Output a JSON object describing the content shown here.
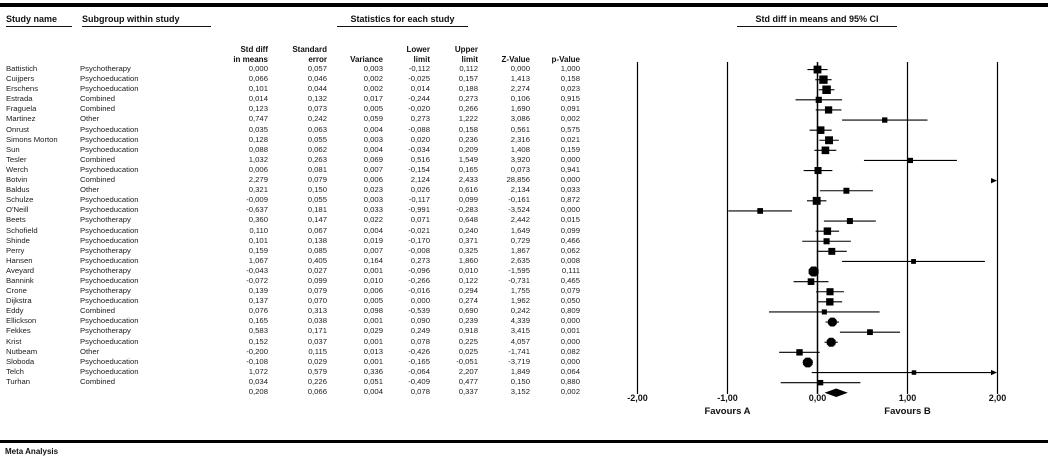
{
  "header": {
    "study_name": "Study name",
    "subgroup": "Subgroup within study",
    "stats_group": "Statistics for each study"
  },
  "table": {
    "stat_columns": [
      {
        "line1": "Std diff",
        "line2": "in means"
      },
      {
        "line1": "Standard",
        "line2": "error"
      },
      {
        "line1": "",
        "line2": "Variance"
      },
      {
        "line1": "Lower",
        "line2": "limit"
      },
      {
        "line1": "Upper",
        "line2": "limit"
      },
      {
        "line1": "",
        "line2": "Z-Value"
      },
      {
        "line1": "",
        "line2": "p-Value"
      }
    ]
  },
  "chart_data": {
    "type": "scatter",
    "variant": "forest-plot",
    "title": "Std diff in means and 95% CI",
    "xlim": [
      -2,
      2
    ],
    "x_tick_values": [
      -2,
      -1,
      0,
      1,
      2
    ],
    "x_ticks": [
      "-2,00",
      "-1,00",
      "0,00",
      "1,00",
      "2,00"
    ],
    "xlabel_left": "Favours A",
    "xlabel_right": "Favours B",
    "grid": true,
    "studies": [
      {
        "name": "Battistich",
        "subgroup": "Psychotherapy",
        "mean": 0.0,
        "se": 0.057,
        "variance": 0.003,
        "lower": -0.112,
        "upper": 0.112,
        "z": 0.0,
        "p": 1.0
      },
      {
        "name": "Cuijpers",
        "subgroup": "Psychoeducation",
        "mean": 0.066,
        "se": 0.046,
        "variance": 0.002,
        "lower": -0.025,
        "upper": 0.157,
        "z": 1.413,
        "p": 0.158
      },
      {
        "name": "Erschens",
        "subgroup": "Psychoeducation",
        "mean": 0.101,
        "se": 0.044,
        "variance": 0.002,
        "lower": 0.014,
        "upper": 0.188,
        "z": 2.274,
        "p": 0.023
      },
      {
        "name": "Estrada",
        "subgroup": "Combined",
        "mean": 0.014,
        "se": 0.132,
        "variance": 0.017,
        "lower": -0.244,
        "upper": 0.273,
        "z": 0.106,
        "p": 0.915
      },
      {
        "name": "Fraguela",
        "subgroup": "Combined",
        "mean": 0.123,
        "se": 0.073,
        "variance": 0.005,
        "lower": -0.02,
        "upper": 0.266,
        "z": 1.69,
        "p": 0.091
      },
      {
        "name": "Martinez",
        "subgroup": "Other",
        "mean": 0.747,
        "se": 0.242,
        "variance": 0.059,
        "lower": 0.273,
        "upper": 1.222,
        "z": 3.086,
        "p": 0.002
      },
      {
        "name": "Onrust",
        "subgroup": "Psychoeducation",
        "mean": 0.035,
        "se": 0.063,
        "variance": 0.004,
        "lower": -0.088,
        "upper": 0.158,
        "z": 0.561,
        "p": 0.575
      },
      {
        "name": "Simons Morton",
        "subgroup": "Psychoeducation",
        "mean": 0.128,
        "se": 0.055,
        "variance": 0.003,
        "lower": 0.02,
        "upper": 0.236,
        "z": 2.316,
        "p": 0.021
      },
      {
        "name": "Sun",
        "subgroup": "Psychoeducation",
        "mean": 0.088,
        "se": 0.062,
        "variance": 0.004,
        "lower": -0.034,
        "upper": 0.209,
        "z": 1.408,
        "p": 0.159
      },
      {
        "name": "Tesler",
        "subgroup": "Combined",
        "mean": 1.032,
        "se": 0.263,
        "variance": 0.069,
        "lower": 0.516,
        "upper": 1.549,
        "z": 3.92,
        "p": 0.0
      },
      {
        "name": "Werch",
        "subgroup": "Psychoeducation",
        "mean": 0.006,
        "se": 0.081,
        "variance": 0.007,
        "lower": -0.154,
        "upper": 0.165,
        "z": 0.073,
        "p": 0.941
      },
      {
        "name": "Botvin",
        "subgroup": "Combined",
        "mean": 2.279,
        "se": 0.079,
        "variance": 0.006,
        "lower": 2.124,
        "upper": 2.433,
        "z": 28.856,
        "p": 0.0
      },
      {
        "name": "Baldus",
        "subgroup": "Other",
        "mean": 0.321,
        "se": 0.15,
        "variance": 0.023,
        "lower": 0.026,
        "upper": 0.616,
        "z": 2.134,
        "p": 0.033
      },
      {
        "name": "Schulze",
        "subgroup": "Psychoeducation",
        "mean": -0.009,
        "se": 0.055,
        "variance": 0.003,
        "lower": -0.117,
        "upper": 0.099,
        "z": -0.161,
        "p": 0.872
      },
      {
        "name": "O'Neill",
        "subgroup": "Psychoeducation",
        "mean": -0.637,
        "se": 0.181,
        "variance": 0.033,
        "lower": -0.991,
        "upper": -0.283,
        "z": -3.524,
        "p": 0.0
      },
      {
        "name": "Beets",
        "subgroup": "Psychotherapy",
        "mean": 0.36,
        "se": 0.147,
        "variance": 0.022,
        "lower": 0.071,
        "upper": 0.648,
        "z": 2.442,
        "p": 0.015
      },
      {
        "name": "Schofield",
        "subgroup": "Psychoeducation",
        "mean": 0.11,
        "se": 0.067,
        "variance": 0.004,
        "lower": -0.021,
        "upper": 0.24,
        "z": 1.649,
        "p": 0.099
      },
      {
        "name": "Shinde",
        "subgroup": "Psychoeducation",
        "mean": 0.101,
        "se": 0.138,
        "variance": 0.019,
        "lower": -0.17,
        "upper": 0.371,
        "z": 0.729,
        "p": 0.466
      },
      {
        "name": "Perry",
        "subgroup": "Psychotherapy",
        "mean": 0.159,
        "se": 0.085,
        "variance": 0.007,
        "lower": -0.008,
        "upper": 0.325,
        "z": 1.867,
        "p": 0.062
      },
      {
        "name": "Hansen",
        "subgroup": "Psychoeducation",
        "mean": 1.067,
        "se": 0.405,
        "variance": 0.164,
        "lower": 0.273,
        "upper": 1.86,
        "z": 2.635,
        "p": 0.008
      },
      {
        "name": "Aveyard",
        "subgroup": "Psychotherapy",
        "mean": -0.043,
        "se": 0.027,
        "variance": 0.001,
        "lower": -0.096,
        "upper": 0.01,
        "z": -1.595,
        "p": 0.111
      },
      {
        "name": "Bannink",
        "subgroup": "Psychoeducation",
        "mean": -0.072,
        "se": 0.099,
        "variance": 0.01,
        "lower": -0.266,
        "upper": 0.122,
        "z": -0.731,
        "p": 0.465
      },
      {
        "name": "Crone",
        "subgroup": "Psychotherapy",
        "mean": 0.139,
        "se": 0.079,
        "variance": 0.006,
        "lower": -0.016,
        "upper": 0.294,
        "z": 1.755,
        "p": 0.079
      },
      {
        "name": "Dijkstra",
        "subgroup": "Psychoeducation",
        "mean": 0.137,
        "se": 0.07,
        "variance": 0.005,
        "lower": 0.0,
        "upper": 0.274,
        "z": 1.962,
        "p": 0.05
      },
      {
        "name": "Eddy",
        "subgroup": "Combined",
        "mean": 0.076,
        "se": 0.313,
        "variance": 0.098,
        "lower": -0.539,
        "upper": 0.69,
        "z": 0.242,
        "p": 0.809
      },
      {
        "name": "Ellickson",
        "subgroup": "Psychoeducation",
        "mean": 0.165,
        "se": 0.038,
        "variance": 0.001,
        "lower": 0.09,
        "upper": 0.239,
        "z": 4.339,
        "p": 0.0
      },
      {
        "name": "Fekkes",
        "subgroup": "Psychotherapy",
        "mean": 0.583,
        "se": 0.171,
        "variance": 0.029,
        "lower": 0.249,
        "upper": 0.918,
        "z": 3.415,
        "p": 0.001
      },
      {
        "name": "Krist",
        "subgroup": "Psychoeducation",
        "mean": 0.152,
        "se": 0.037,
        "variance": 0.001,
        "lower": 0.078,
        "upper": 0.225,
        "z": 4.057,
        "p": 0.0
      },
      {
        "name": "Nutbeam",
        "subgroup": "Other",
        "mean": -0.2,
        "se": 0.115,
        "variance": 0.013,
        "lower": -0.426,
        "upper": 0.025,
        "z": -1.741,
        "p": 0.082
      },
      {
        "name": "Sloboda",
        "subgroup": "Psychoeducation",
        "mean": -0.108,
        "se": 0.029,
        "variance": 0.001,
        "lower": -0.165,
        "upper": -0.051,
        "z": -3.719,
        "p": 0.0
      },
      {
        "name": "Telch",
        "subgroup": "Psychoeducation",
        "mean": 1.072,
        "se": 0.579,
        "variance": 0.336,
        "lower": -0.064,
        "upper": 2.207,
        "z": 1.849,
        "p": 0.064
      },
      {
        "name": "Turhan",
        "subgroup": "Combined",
        "mean": 0.034,
        "se": 0.226,
        "variance": 0.051,
        "lower": -0.409,
        "upper": 0.477,
        "z": 0.15,
        "p": 0.88
      }
    ],
    "summary": {
      "mean": 0.208,
      "se": 0.066,
      "variance": 0.004,
      "lower": 0.078,
      "upper": 0.337,
      "z": 3.152,
      "p": 0.002
    }
  },
  "footer": {
    "label": "Meta Analysis"
  },
  "colors": {
    "ink": "#111111",
    "background": "#ffffff"
  }
}
